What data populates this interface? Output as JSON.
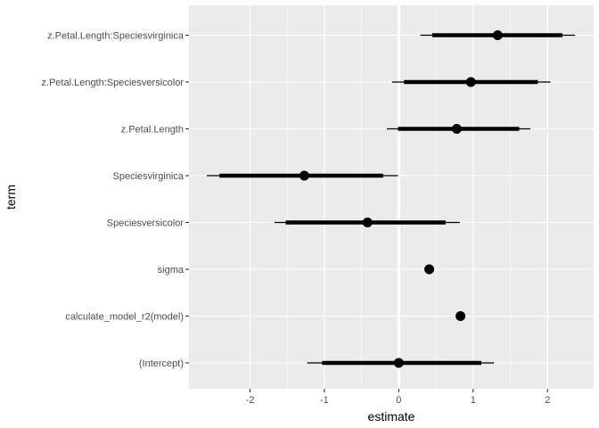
{
  "chart_data": {
    "type": "scatter",
    "subtype": "coefficient-interval-plot",
    "xlabel": "estimate",
    "ylabel": "term",
    "xlim": [
      -2.82,
      2.62
    ],
    "x_ticks": [
      -2,
      -1,
      0,
      1,
      2
    ],
    "reference_line_x": 0,
    "grid": true,
    "legend": "none",
    "colors": {
      "panel": "#ebebeb",
      "grid": "#ffffff",
      "mark": "#000000",
      "tick_label": "#4d4d4d"
    },
    "terms": [
      {
        "term": "z.Petal.Length:Speciesvirginica",
        "estimate": 1.33,
        "inner": [
          0.45,
          2.2
        ],
        "outer": [
          0.29,
          2.37
        ]
      },
      {
        "term": "z.Petal.Length:Speciesversicolor",
        "estimate": 0.97,
        "inner": [
          0.07,
          1.87
        ],
        "outer": [
          -0.09,
          2.04
        ]
      },
      {
        "term": "z.Petal.Length",
        "estimate": 0.78,
        "inner": [
          -0.01,
          1.62
        ],
        "outer": [
          -0.16,
          1.77
        ]
      },
      {
        "term": "Speciesvirginica",
        "estimate": -1.27,
        "inner": [
          -2.41,
          -0.21
        ],
        "outer": [
          -2.58,
          -0.01
        ]
      },
      {
        "term": "Speciesversicolor",
        "estimate": -0.42,
        "inner": [
          -1.52,
          0.63
        ],
        "outer": [
          -1.67,
          0.82
        ]
      },
      {
        "term": "sigma",
        "estimate": 0.41,
        "inner": null,
        "outer": null
      },
      {
        "term": "calculate_model_r2(model)",
        "estimate": 0.83,
        "inner": null,
        "outer": null
      },
      {
        "term": "(Intercept)",
        "estimate": 0.0,
        "inner": [
          -1.03,
          1.11
        ],
        "outer": [
          -1.23,
          1.28
        ]
      }
    ]
  }
}
